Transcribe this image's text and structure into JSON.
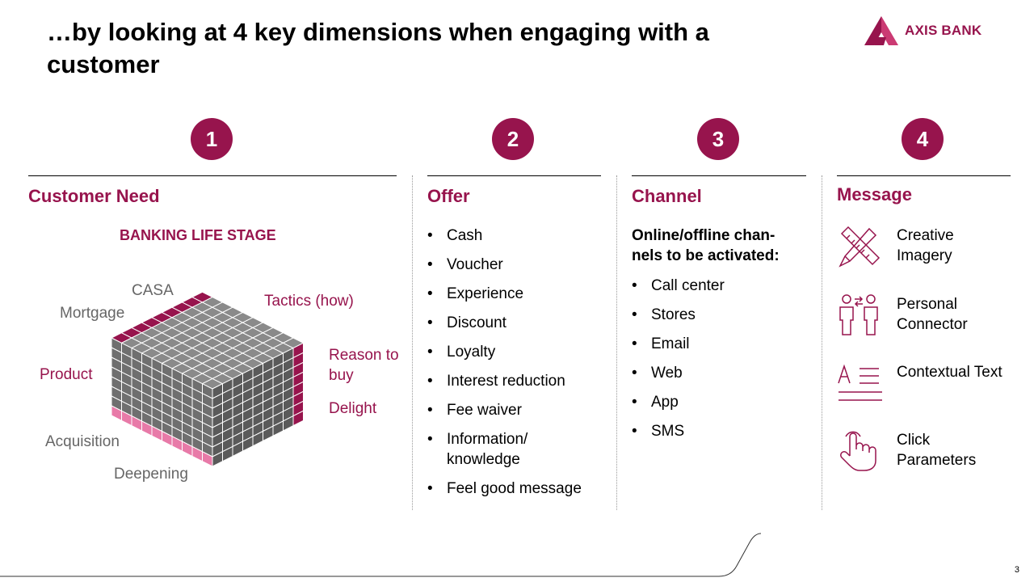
{
  "slide": {
    "title": "…by looking at 4 key dimensions when engaging with a customer",
    "logo_text": "AXIS BANK",
    "page_number": "3",
    "accent_color": "#97144d"
  },
  "columns": {
    "need": {
      "number": "1",
      "heading": "Customer Need",
      "subheading": "BANKING LIFE STAGE",
      "cube_labels": {
        "casa": "CASA",
        "mortgage": "Mortgage",
        "tactics": "Tactics (how)",
        "product": "Product",
        "reason": "Reason to buy",
        "delight": "Delight",
        "acquisition": "Acquisition",
        "deepening": "Deepening"
      }
    },
    "offer": {
      "number": "2",
      "heading": "Offer",
      "items": [
        "Cash",
        "Voucher",
        "Experience",
        "Discount",
        "Loyalty",
        "Interest reduction",
        "Fee waiver",
        "Information/ knowledge",
        "Feel good message"
      ]
    },
    "channel": {
      "number": "3",
      "heading": "Channel",
      "intro": "Online/offline chan-nels to be activated:",
      "items": [
        "Call center",
        "Stores",
        "Email",
        "Web",
        "App",
        "SMS"
      ]
    },
    "message": {
      "number": "4",
      "heading": "Message",
      "items": [
        {
          "label": "Creative Imagery",
          "icon": "pencil-ruler-icon"
        },
        {
          "label": "Personal Connector",
          "icon": "people-exchange-icon"
        },
        {
          "label": "Contextual Text",
          "icon": "text-lines-icon"
        },
        {
          "label": "Click Parameters",
          "icon": "hand-click-icon"
        }
      ]
    }
  }
}
